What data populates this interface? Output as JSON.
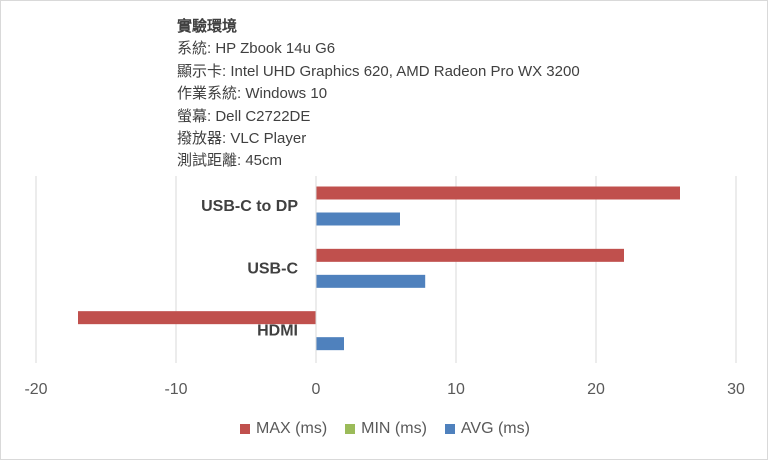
{
  "info": {
    "title": "實驗環境",
    "lines": [
      "系統: HP Zbook 14u G6",
      "顯示卡: Intel UHD Graphics 620, AMD Radeon Pro WX 3200",
      "作業系統: Windows 10",
      "螢幕: Dell C2722DE",
      "撥放器: VLC Player",
      "測試距離: 45cm"
    ]
  },
  "chart_data": {
    "type": "bar",
    "orientation": "horizontal",
    "categories": [
      "USB-C to DP",
      "USB-C",
      "HDMI"
    ],
    "series": [
      {
        "name": "MAX (ms)",
        "color": "#c0504d",
        "values": [
          26,
          22,
          -17
        ]
      },
      {
        "name": "MIN (ms)",
        "color": "#9bbb59",
        "values": [
          0,
          0,
          0
        ]
      },
      {
        "name": "AVG (ms)",
        "color": "#4f81bd",
        "values": [
          6,
          7.8,
          2
        ]
      }
    ],
    "xlim": [
      -20,
      30
    ],
    "xticks": [
      -20,
      -10,
      0,
      10,
      20,
      30
    ],
    "grid": true,
    "legend_position": "bottom"
  }
}
